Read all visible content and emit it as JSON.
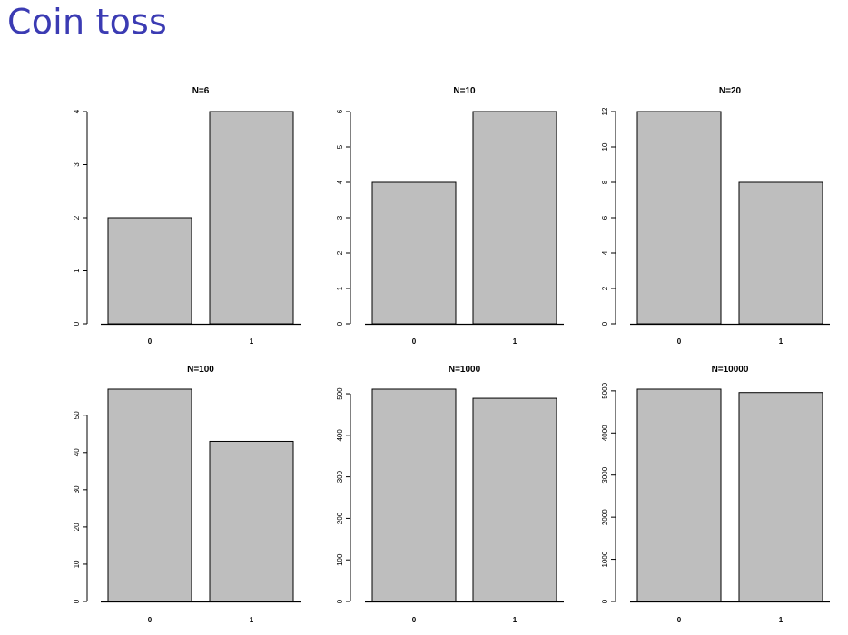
{
  "page": {
    "title": "Coin toss"
  },
  "colors": {
    "title": "#3b3bb3",
    "bar_fill": "#bebebe",
    "bar_stroke": "#000000"
  },
  "chart_data": [
    {
      "type": "bar",
      "title": "N=6",
      "categories": [
        "0",
        "1"
      ],
      "values": [
        2,
        4
      ],
      "ylim": [
        0,
        4
      ],
      "yticks": [
        0,
        1,
        2,
        3,
        4
      ],
      "xlabel": "",
      "ylabel": "",
      "grid": false
    },
    {
      "type": "bar",
      "title": "N=10",
      "categories": [
        "0",
        "1"
      ],
      "values": [
        4,
        6
      ],
      "ylim": [
        0,
        6
      ],
      "yticks": [
        0,
        1,
        2,
        3,
        4,
        5,
        6
      ],
      "xlabel": "",
      "ylabel": "",
      "grid": false
    },
    {
      "type": "bar",
      "title": "N=20",
      "categories": [
        "0",
        "1"
      ],
      "values": [
        12,
        8
      ],
      "ylim": [
        0,
        12
      ],
      "yticks": [
        0,
        2,
        4,
        6,
        8,
        10,
        12
      ],
      "xlabel": "",
      "ylabel": "",
      "grid": false
    },
    {
      "type": "bar",
      "title": "N=100",
      "categories": [
        "0",
        "1"
      ],
      "values": [
        57,
        43
      ],
      "ylim": [
        0,
        57
      ],
      "yticks": [
        0,
        10,
        20,
        30,
        40,
        50
      ],
      "xlabel": "",
      "ylabel": "",
      "grid": false
    },
    {
      "type": "bar",
      "title": "N=1000",
      "categories": [
        "0",
        "1"
      ],
      "values": [
        511,
        489
      ],
      "ylim": [
        0,
        511
      ],
      "yticks": [
        0,
        100,
        200,
        300,
        400,
        500
      ],
      "xlabel": "",
      "ylabel": "",
      "grid": false
    },
    {
      "type": "bar",
      "title": "N=10000",
      "categories": [
        "0",
        "1"
      ],
      "values": [
        5040,
        4960
      ],
      "ylim": [
        0,
        5040
      ],
      "yticks": [
        0,
        1000,
        2000,
        3000,
        4000,
        5000
      ],
      "xlabel": "",
      "ylabel": "",
      "grid": false
    }
  ]
}
